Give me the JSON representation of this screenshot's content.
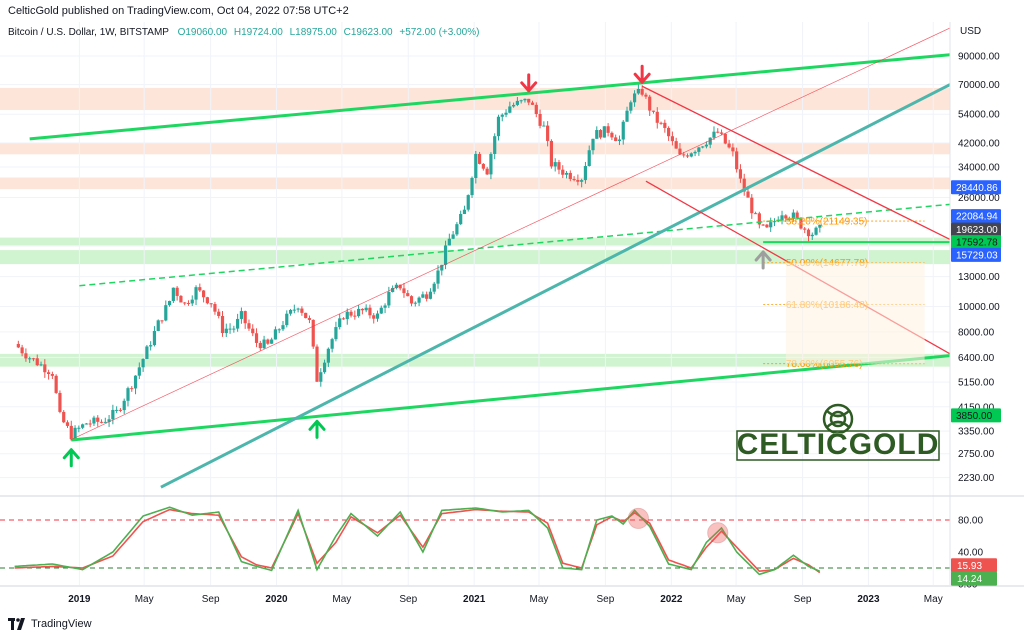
{
  "header": {
    "publish_line": "CelticGold published on TradingView.com, Oct 04, 2022 07:58 UTC+2"
  },
  "footer": {
    "brand": "TradingView"
  },
  "logo": {
    "text": "CELTICGOLD",
    "color": "#2e5a23"
  },
  "colors": {
    "up": "#26a69a",
    "down": "#ef5350",
    "green_line": "#1ed760",
    "teal_line": "#4db6ac",
    "red_line": "#f23645",
    "fib": "#ff9800",
    "stoch_k": "#4caf50",
    "stoch_d": "#ef5350"
  },
  "chart_data": {
    "type": "candlestick",
    "legend": {
      "symbol": "Bitcoin / U.S. Dollar, 1W, BITSTAMP",
      "open": "O19060.00",
      "high": "H19724.00",
      "low": "L18975.00",
      "close": "C19623.00",
      "change": "+572.00 (+3.00%)"
    },
    "y_axis": {
      "label": "USD",
      "scale": "log",
      "range": [
        2000,
        115000
      ],
      "ticks": [
        90000,
        70000,
        54000,
        42000,
        34000,
        26000,
        17000,
        13000,
        10000,
        8000,
        6400,
        5150,
        4150,
        3350,
        2750,
        2230
      ]
    },
    "x_axis": {
      "ticks": [
        {
          "label": "2019",
          "date": "2019-01-01",
          "bold": true
        },
        {
          "label": "May",
          "date": "2019-05-01"
        },
        {
          "label": "Sep",
          "date": "2019-09-01"
        },
        {
          "label": "2020",
          "date": "2020-01-01",
          "bold": true
        },
        {
          "label": "May",
          "date": "2020-05-01"
        },
        {
          "label": "Sep",
          "date": "2020-09-01"
        },
        {
          "label": "2021",
          "date": "2021-01-01",
          "bold": true
        },
        {
          "label": "May",
          "date": "2021-05-01"
        },
        {
          "label": "Sep",
          "date": "2021-09-01"
        },
        {
          "label": "2022",
          "date": "2022-01-01",
          "bold": true
        },
        {
          "label": "May",
          "date": "2022-05-01"
        },
        {
          "label": "Sep",
          "date": "2022-09-01"
        },
        {
          "label": "2023",
          "date": "2023-01-01",
          "bold": true
        },
        {
          "label": "May",
          "date": "2023-05-01"
        }
      ]
    },
    "price_path": [
      [
        "2018-09-03",
        7200
      ],
      [
        "2018-10-01",
        6400
      ],
      [
        "2018-11-12",
        5600
      ],
      [
        "2018-11-26",
        3800
      ],
      [
        "2018-12-17",
        3250
      ],
      [
        "2019-01-14",
        3600
      ],
      [
        "2019-02-11",
        3650
      ],
      [
        "2019-03-11",
        3950
      ],
      [
        "2019-04-08",
        5100
      ],
      [
        "2019-05-06",
        6800
      ],
      [
        "2019-05-27",
        8600
      ],
      [
        "2019-06-17",
        10500
      ],
      [
        "2019-06-24",
        11800
      ],
      [
        "2019-07-15",
        10200
      ],
      [
        "2019-08-05",
        11600
      ],
      [
        "2019-09-02",
        10400
      ],
      [
        "2019-09-23",
        8200
      ],
      [
        "2019-10-14",
        8300
      ],
      [
        "2019-10-28",
        9200
      ],
      [
        "2019-11-25",
        7300
      ],
      [
        "2019-12-16",
        7100
      ],
      [
        "2020-01-13",
        8700
      ],
      [
        "2020-02-10",
        10200
      ],
      [
        "2020-03-02",
        8700
      ],
      [
        "2020-03-16",
        5300
      ],
      [
        "2020-04-06",
        7000
      ],
      [
        "2020-05-04",
        9300
      ],
      [
        "2020-06-08",
        9600
      ],
      [
        "2020-07-06",
        9200
      ],
      [
        "2020-07-27",
        11100
      ],
      [
        "2020-08-17",
        12000
      ],
      [
        "2020-09-07",
        10300
      ],
      [
        "2020-10-05",
        11200
      ],
      [
        "2020-10-26",
        13500
      ],
      [
        "2020-11-16",
        18000
      ],
      [
        "2020-12-14",
        23000
      ],
      [
        "2021-01-04",
        38000
      ],
      [
        "2021-01-25",
        33000
      ],
      [
        "2021-02-15",
        52000
      ],
      [
        "2021-03-08",
        58000
      ],
      [
        "2021-04-12",
        61000
      ],
      [
        "2021-05-10",
        48000
      ],
      [
        "2021-05-24",
        35000
      ],
      [
        "2021-06-21",
        32000
      ],
      [
        "2021-07-19",
        31000
      ],
      [
        "2021-08-09",
        45000
      ],
      [
        "2021-09-06",
        47000
      ],
      [
        "2021-09-27",
        43000
      ],
      [
        "2021-10-18",
        62000
      ],
      [
        "2021-11-08",
        66000
      ],
      [
        "2021-11-29",
        53000
      ],
      [
        "2021-12-20",
        47000
      ],
      [
        "2022-01-17",
        37000
      ],
      [
        "2022-02-14",
        40000
      ],
      [
        "2022-03-28",
        46000
      ],
      [
        "2022-04-25",
        38000
      ],
      [
        "2022-05-09",
        30000
      ],
      [
        "2022-06-13",
        20000
      ],
      [
        "2022-06-27",
        19500
      ],
      [
        "2022-07-25",
        23000
      ],
      [
        "2022-08-15",
        22000
      ],
      [
        "2022-09-05",
        19800
      ],
      [
        "2022-09-19",
        19000
      ],
      [
        "2022-10-03",
        19623
      ]
    ],
    "price_labels": [
      {
        "value": 28440.86,
        "text": "28440.86",
        "bg": "#2962ff",
        "color": "#ffffff"
      },
      {
        "value": 22084.94,
        "text": "22084.94",
        "bg": "#2962ff",
        "color": "#ffffff"
      },
      {
        "value": 19623.0,
        "text": "19623.00",
        "sub": "5d 19h",
        "bg": "#434651",
        "color": "#ffffff"
      },
      {
        "value": 17592.78,
        "text": "17592.78",
        "bg": "#00c853",
        "color": "#131722"
      },
      {
        "value": 15729.03,
        "text": "15729.03",
        "bg": "#2962ff",
        "color": "#ffffff"
      },
      {
        "value": 3850.0,
        "text": "3850.00",
        "bg": "#00c853",
        "color": "#131722"
      }
    ],
    "fib_levels": [
      {
        "value": 21149.35,
        "text": "38.20%(21149.35)"
      },
      {
        "value": 14677.78,
        "text": "50.00%(14677.78)"
      },
      {
        "value": 10186.48,
        "text": "61.80%(10186.48)"
      },
      {
        "value": 6055.76,
        "text": "78.60%(6055.76)"
      }
    ],
    "stochastic": {
      "levels": [
        80,
        20
      ],
      "ticks": [
        80,
        40,
        0
      ],
      "tick_labels": [
        "80.00",
        "40.00",
        "0.00"
      ],
      "k_label": "15.93",
      "d_label": "14.24",
      "k_value": 15.93,
      "d_value": 14.24,
      "k_path": [
        [
          "2018-09-03",
          22
        ],
        [
          "2018-11-12",
          25
        ],
        [
          "2019-01-07",
          18
        ],
        [
          "2019-03-04",
          40
        ],
        [
          "2019-04-29",
          85
        ],
        [
          "2019-06-17",
          96
        ],
        [
          "2019-07-29",
          86
        ],
        [
          "2019-09-16",
          90
        ],
        [
          "2019-10-28",
          28
        ],
        [
          "2019-11-25",
          22
        ],
        [
          "2019-12-23",
          17
        ],
        [
          "2020-02-10",
          92
        ],
        [
          "2020-03-16",
          18
        ],
        [
          "2020-04-20",
          60
        ],
        [
          "2020-05-18",
          88
        ],
        [
          "2020-07-06",
          60
        ],
        [
          "2020-08-17",
          90
        ],
        [
          "2020-09-28",
          40
        ],
        [
          "2020-11-02",
          92
        ],
        [
          "2021-01-04",
          95
        ],
        [
          "2021-02-22",
          90
        ],
        [
          "2021-04-12",
          92
        ],
        [
          "2021-05-17",
          70
        ],
        [
          "2021-06-14",
          20
        ],
        [
          "2021-07-19",
          18
        ],
        [
          "2021-08-16",
          80
        ],
        [
          "2021-09-13",
          85
        ],
        [
          "2021-10-04",
          75
        ],
        [
          "2021-10-25",
          92
        ],
        [
          "2021-11-22",
          72
        ],
        [
          "2021-12-27",
          25
        ],
        [
          "2022-02-07",
          18
        ],
        [
          "2022-03-07",
          52
        ],
        [
          "2022-04-04",
          70
        ],
        [
          "2022-05-02",
          40
        ],
        [
          "2022-06-13",
          12
        ],
        [
          "2022-07-11",
          18
        ],
        [
          "2022-08-15",
          36
        ],
        [
          "2022-09-12",
          22
        ],
        [
          "2022-10-03",
          15.93
        ]
      ],
      "d_path": [
        [
          "2018-09-03",
          20
        ],
        [
          "2018-11-12",
          22
        ],
        [
          "2019-01-07",
          20
        ],
        [
          "2019-03-04",
          35
        ],
        [
          "2019-04-29",
          78
        ],
        [
          "2019-06-17",
          93
        ],
        [
          "2019-07-29",
          88
        ],
        [
          "2019-09-16",
          86
        ],
        [
          "2019-10-28",
          34
        ],
        [
          "2019-11-25",
          24
        ],
        [
          "2019-12-23",
          20
        ],
        [
          "2020-02-10",
          88
        ],
        [
          "2020-03-16",
          26
        ],
        [
          "2020-04-20",
          52
        ],
        [
          "2020-05-18",
          84
        ],
        [
          "2020-07-06",
          64
        ],
        [
          "2020-08-17",
          86
        ],
        [
          "2020-09-28",
          46
        ],
        [
          "2020-11-02",
          88
        ],
        [
          "2021-01-04",
          93
        ],
        [
          "2021-02-22",
          91
        ],
        [
          "2021-04-12",
          90
        ],
        [
          "2021-05-17",
          76
        ],
        [
          "2021-06-14",
          26
        ],
        [
          "2021-07-19",
          20
        ],
        [
          "2021-08-16",
          74
        ],
        [
          "2021-09-13",
          84
        ],
        [
          "2021-10-04",
          78
        ],
        [
          "2021-10-25",
          89
        ],
        [
          "2021-11-22",
          76
        ],
        [
          "2021-12-27",
          30
        ],
        [
          "2022-02-07",
          20
        ],
        [
          "2022-03-07",
          46
        ],
        [
          "2022-04-04",
          66
        ],
        [
          "2022-05-02",
          46
        ],
        [
          "2022-06-13",
          16
        ],
        [
          "2022-07-11",
          18
        ],
        [
          "2022-08-15",
          32
        ],
        [
          "2022-09-12",
          24
        ],
        [
          "2022-10-03",
          14.24
        ]
      ],
      "highlights": [
        [
          "2021-11-01",
          82
        ],
        [
          "2022-03-28",
          64
        ]
      ]
    },
    "zones": [
      {
        "from": 17100,
        "to": 18300,
        "color": "#c8f1c8"
      },
      {
        "from": 14500,
        "to": 16400,
        "color": "#c8f1c8"
      },
      {
        "from": 5900,
        "to": 6600,
        "color": "#c8f1c8"
      },
      {
        "from": 56000,
        "to": 68000,
        "color": "#fde2d2"
      },
      {
        "from": 38000,
        "to": 42000,
        "color": "#fde2d2"
      },
      {
        "from": 28000,
        "to": 31000,
        "color": "#fde2d2"
      }
    ],
    "trendlines": [
      {
        "style": "green",
        "p1": [
          "2018-10-01",
          43500
        ],
        "p2": [
          "2023-06-01",
          91000
        ]
      },
      {
        "style": "green",
        "p1": [
          "2018-12-17",
          3100
        ],
        "p2": [
          "2023-06-01",
          6500
        ]
      },
      {
        "style": "green_dashed",
        "p1": [
          "2019-01-01",
          12000
        ],
        "p2": [
          "2023-06-01",
          24500
        ]
      },
      {
        "style": "teal",
        "p1": [
          "2019-06-01",
          2050
        ],
        "p2": [
          "2023-06-01",
          70000
        ]
      },
      {
        "style": "thin_red",
        "p1": [
          "2018-12-15",
          3100
        ],
        "p2": [
          "2023-06-01",
          115000
        ]
      },
      {
        "style": "red",
        "p1": [
          "2021-11-08",
          69000
        ],
        "p2": [
          "2023-06-01",
          18000
        ]
      },
      {
        "style": "red",
        "p1": [
          "2021-11-15",
          30000
        ],
        "p2": [
          "2023-06-01",
          6600
        ]
      },
      {
        "style": "green_solid_short",
        "p1": [
          "2022-06-20",
          17592.78
        ],
        "p2": [
          "2023-06-01",
          17592.78
        ]
      }
    ],
    "arrows": [
      {
        "date": "2021-04-12",
        "value": 64000,
        "dir": "down",
        "color": "#f23645"
      },
      {
        "date": "2021-11-08",
        "value": 69000,
        "dir": "down",
        "color": "#f23645"
      },
      {
        "date": "2018-12-17",
        "value": 3000,
        "dir": "up",
        "color": "#00c853"
      },
      {
        "date": "2020-03-16",
        "value": 3850,
        "dir": "up",
        "color": "#00c853"
      },
      {
        "date": "2022-06-20",
        "value": 17000,
        "dir": "up",
        "color": "#9e9e9e"
      }
    ]
  }
}
